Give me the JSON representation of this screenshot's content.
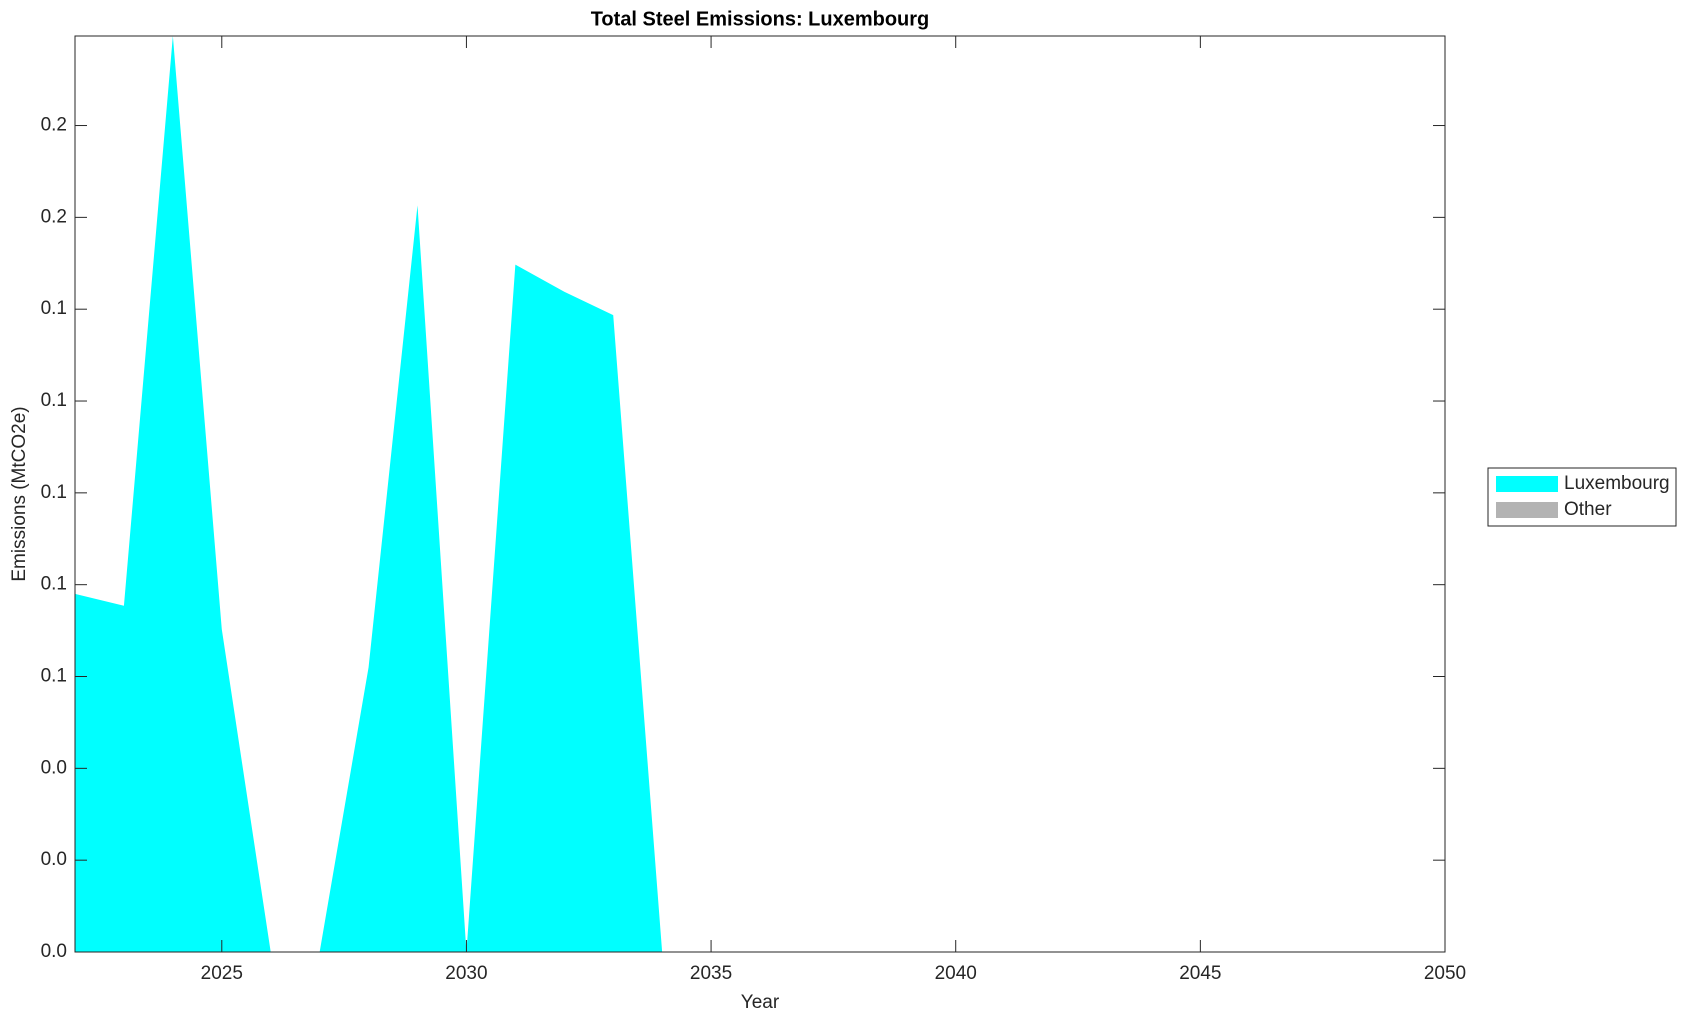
{
  "chart_data": {
    "type": "area",
    "title": "Total Steel Emissions: Luxembourg",
    "x_label": "Year",
    "y_label": "Emissions (MtCO2e)",
    "x": [
      2022,
      2023,
      2024,
      2025,
      2026,
      2027,
      2028,
      2029,
      2030,
      2031,
      2032,
      2033,
      2034,
      2035,
      2036,
      2037,
      2038,
      2039,
      2040,
      2041,
      2042,
      2043,
      2044,
      2045,
      2046,
      2047,
      2048,
      2049,
      2050
    ],
    "series": [
      {
        "name": "Luxembourg",
        "color": "#00ffff",
        "values": [
          0.078,
          0.0754,
          0.1995,
          0.0703,
          0,
          0,
          0.062,
          0.1626,
          0,
          0.1497,
          0.1438,
          0.1387,
          0,
          0,
          0,
          0,
          0,
          0,
          0,
          0,
          0,
          0,
          0,
          0,
          0,
          0,
          0,
          0,
          0
        ]
      },
      {
        "name": "Other",
        "color": "#b3b3b3",
        "values": [
          0,
          0,
          0,
          0,
          0,
          0,
          0,
          0,
          0,
          0,
          0,
          0,
          0,
          0,
          0,
          0,
          0,
          0,
          0,
          0,
          0,
          0,
          0,
          0,
          0,
          0,
          0,
          0,
          0
        ]
      }
    ],
    "stacked": true,
    "xlim": [
      2022,
      2050
    ],
    "xticks": [
      2025,
      2030,
      2035,
      2040,
      2045,
      2050
    ],
    "ylim": [
      0,
      0.1995
    ],
    "yticks": [
      {
        "value": 0,
        "label": "0.0"
      },
      {
        "value": 0.02,
        "label": "0.0"
      },
      {
        "value": 0.04,
        "label": "0.0"
      },
      {
        "value": 0.06,
        "label": "0.1"
      },
      {
        "value": 0.08,
        "label": "0.1"
      },
      {
        "value": 0.1,
        "label": "0.1"
      },
      {
        "value": 0.12,
        "label": "0.1"
      },
      {
        "value": 0.14,
        "label": "0.1"
      },
      {
        "value": 0.16,
        "label": "0.2"
      },
      {
        "value": 0.18,
        "label": "0.2"
      }
    ],
    "legend": "right"
  }
}
